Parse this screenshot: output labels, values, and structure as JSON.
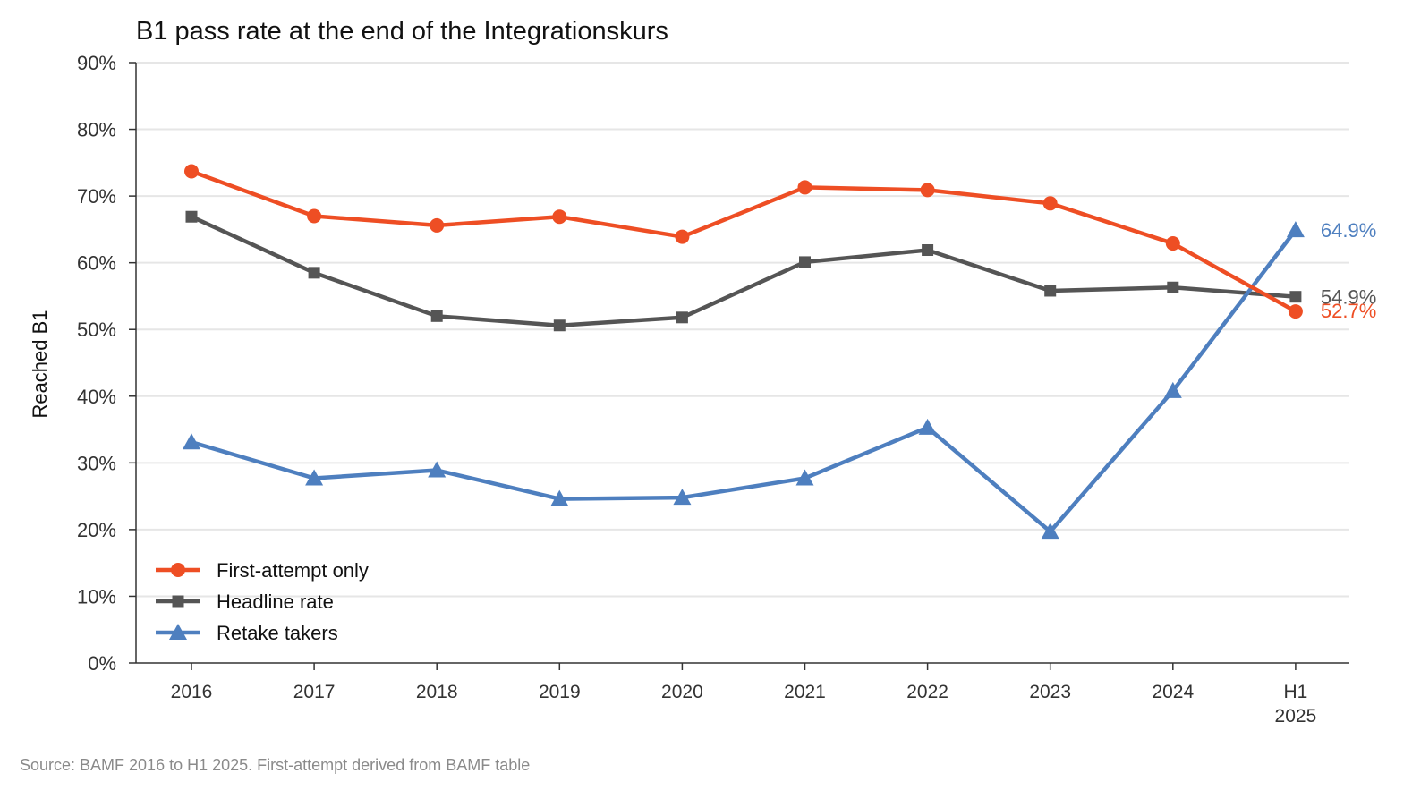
{
  "chart_data": {
    "type": "line",
    "title": "B1 pass rate at the end of the Integrationskurs",
    "xlabel": "",
    "ylabel": "Reached B1",
    "categories": [
      "2016",
      "2017",
      "2018",
      "2019",
      "2020",
      "2021",
      "2022",
      "2023",
      "2024",
      "H1 2025"
    ],
    "ylim": [
      0,
      90
    ],
    "yticks": [
      0,
      10,
      20,
      30,
      40,
      50,
      60,
      70,
      80,
      90
    ],
    "ytick_labels": [
      "0%",
      "10%",
      "20%",
      "30%",
      "40%",
      "50%",
      "60%",
      "70%",
      "80%",
      "90%"
    ],
    "grid": "horizontal",
    "legend_position": "bottom-left",
    "series": [
      {
        "name": "First-attempt only",
        "color": "#ee4e24",
        "marker": "circle",
        "values": [
          73.7,
          67.0,
          65.6,
          66.9,
          63.9,
          71.3,
          70.9,
          68.9,
          62.9,
          52.7
        ],
        "end_label": "52.7%"
      },
      {
        "name": "Headline rate",
        "color": "#555555",
        "marker": "square",
        "values": [
          66.9,
          58.5,
          52.0,
          50.6,
          51.8,
          60.1,
          61.9,
          55.8,
          56.3,
          54.9
        ],
        "end_label": "54.9%"
      },
      {
        "name": "Retake takers",
        "color": "#4e7fbf",
        "marker": "triangle",
        "values": [
          33.1,
          27.7,
          28.9,
          24.6,
          24.8,
          27.7,
          35.3,
          19.7,
          40.8,
          64.9
        ],
        "end_label": "64.9%"
      }
    ]
  },
  "source_note": "Source: BAMF 2016 to H1 2025. First-attempt derived from BAMF table"
}
